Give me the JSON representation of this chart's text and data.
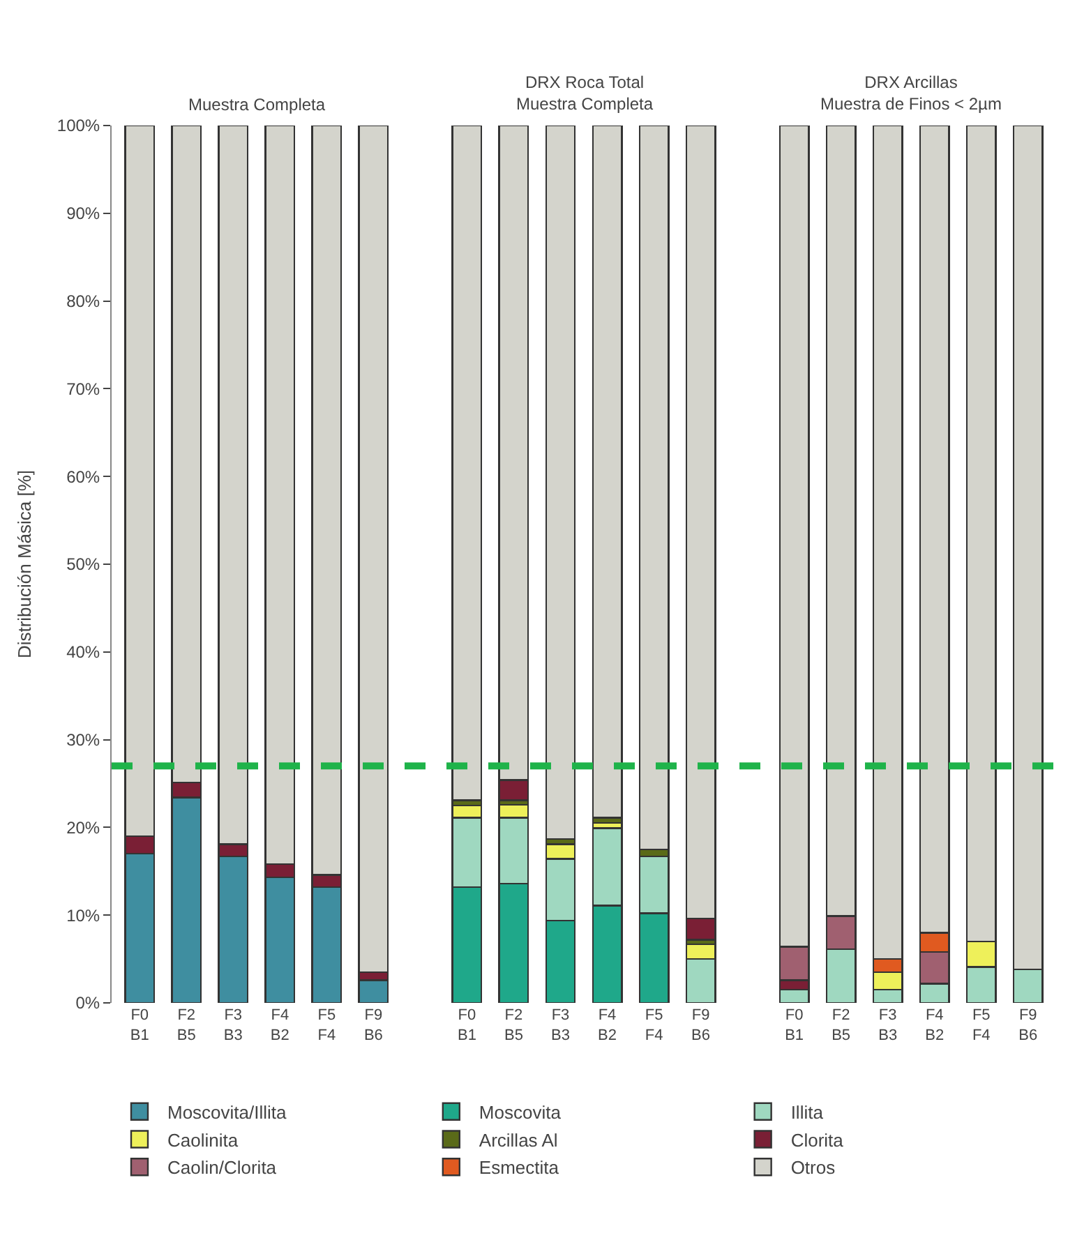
{
  "chart_data": {
    "type": "bar",
    "stacked": true,
    "ylabel": "Distribución Másica [%]",
    "legend": "bottom",
    "annotations": [
      "Muestra Completa",
      "DRX Roca Total\nMuestra Completa",
      "DRX Arcillas\nMuestra de Finos < 2µm"
    ],
    "categories": [
      "F0\nB1",
      "F2\nB5",
      "F3\nB3",
      "F4\nB2",
      "F5\nF4",
      "F9\nB6",
      null,
      "F0\nB1",
      "F2\nB5",
      "F3\nB3",
      "F4\nB2",
      "F5\nF4",
      "F9\nB6",
      null,
      "F0\nB1",
      "F2\nB5",
      "F3\nB3",
      "F4\nB2",
      "F5\nF4",
      "F9\nB6"
    ],
    "ylim": [
      0,
      100
    ],
    "yticks": [
      {
        "value": 0,
        "label": "0%"
      },
      {
        "value": 10,
        "label": "10%"
      },
      {
        "value": 20,
        "label": "20%"
      },
      {
        "value": 30,
        "label": "30%"
      },
      {
        "value": 40,
        "label": "40%"
      },
      {
        "value": 50,
        "label": "50%"
      },
      {
        "value": 60,
        "label": "60%"
      },
      {
        "value": 70,
        "label": "70%"
      },
      {
        "value": 80,
        "label": "80%"
      },
      {
        "value": 90,
        "label": "90%"
      },
      {
        "value": 100,
        "label": "100%"
      }
    ],
    "ref_lines": [
      {
        "axis": "y",
        "value": 27,
        "color": "#1fb34a",
        "line_style": "dashed"
      }
    ],
    "series": [
      {
        "name": "Moscovita/Illita",
        "color": "#3f8ea0",
        "values": [
          17.0,
          23.4,
          16.7,
          14.3,
          13.2,
          2.6,
          null,
          null,
          null,
          null,
          null,
          null,
          null,
          null,
          null,
          null,
          null,
          null,
          null,
          null
        ]
      },
      {
        "name": "Moscovita",
        "color": "#1fa88a",
        "values": [
          null,
          null,
          null,
          null,
          null,
          null,
          null,
          13.2,
          13.6,
          9.4,
          11.1,
          10.2,
          null,
          null,
          null,
          null,
          null,
          null,
          null,
          null
        ]
      },
      {
        "name": "Illita",
        "color": "#9fd8c0",
        "values": [
          null,
          null,
          null,
          null,
          null,
          null,
          null,
          7.9,
          7.5,
          7.0,
          8.8,
          6.5,
          5.0,
          null,
          1.5,
          6.1,
          1.5,
          2.2,
          4.1,
          3.8
        ]
      },
      {
        "name": "Caolinita",
        "color": "#eef05a",
        "values": [
          null,
          null,
          null,
          null,
          null,
          null,
          null,
          1.4,
          1.5,
          1.7,
          0.6,
          null,
          1.7,
          null,
          null,
          null,
          2.0,
          null,
          2.9,
          null
        ]
      },
      {
        "name": "Arcillas Al",
        "color": "#5a6a18",
        "values": [
          null,
          null,
          null,
          null,
          null,
          null,
          null,
          0.6,
          0.5,
          0.6,
          0.6,
          0.8,
          0.5,
          null,
          null,
          null,
          null,
          null,
          null,
          null
        ]
      },
      {
        "name": "Clorita",
        "color": "#7a1f35",
        "values": [
          2.0,
          1.7,
          1.4,
          1.5,
          1.4,
          0.9,
          null,
          null,
          2.3,
          null,
          null,
          null,
          2.4,
          null,
          1.1,
          null,
          null,
          null,
          null,
          null
        ]
      },
      {
        "name": "Caolin/Clorita",
        "color": "#a06070",
        "values": [
          null,
          null,
          null,
          null,
          null,
          null,
          null,
          null,
          null,
          null,
          null,
          null,
          null,
          null,
          3.8,
          3.8,
          null,
          3.6,
          null,
          null
        ]
      },
      {
        "name": "Esmectita",
        "color": "#e05a20",
        "values": [
          null,
          null,
          null,
          null,
          null,
          null,
          null,
          null,
          null,
          null,
          null,
          null,
          null,
          null,
          null,
          null,
          1.5,
          2.2,
          null,
          null
        ]
      },
      {
        "name": "Otros",
        "color": "#d4d4cc",
        "values": [
          81.0,
          74.9,
          81.9,
          84.2,
          85.4,
          96.5,
          null,
          76.9,
          74.6,
          81.3,
          78.9,
          82.5,
          90.4,
          null,
          93.6,
          90.1,
          95.0,
          92.0,
          93.0,
          96.2
        ]
      }
    ]
  }
}
